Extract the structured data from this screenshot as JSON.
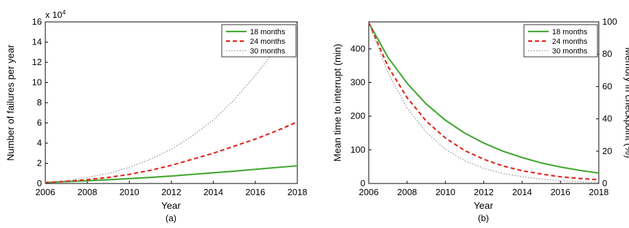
{
  "chart_data": [
    {
      "type": "line",
      "panel_label": "(a)",
      "xlabel": "Year",
      "ylabel": "Number of failures per year",
      "y_multiplier": "x 10",
      "y_multiplier_exp": "4",
      "xlim": [
        2006,
        2018
      ],
      "ylim": [
        0,
        16
      ],
      "xticks": [
        "2006",
        "2008",
        "2010",
        "2012",
        "2014",
        "2016",
        "2018"
      ],
      "yticks": [
        "0",
        "2",
        "4",
        "6",
        "8",
        "10",
        "12",
        "14",
        "16"
      ],
      "legend_position": "top-right",
      "x": [
        2006,
        2007,
        2008,
        2009,
        2010,
        2011,
        2012,
        2013,
        2014,
        2015,
        2016,
        2017,
        2018
      ],
      "series": [
        {
          "name": "18 months",
          "color": "#44a832",
          "style": "solid",
          "values": [
            0.1,
            0.18,
            0.27,
            0.37,
            0.48,
            0.6,
            0.74,
            0.9,
            1.06,
            1.22,
            1.4,
            1.58,
            1.75
          ]
        },
        {
          "name": "24 months",
          "color": "#e0251b",
          "style": "dashed",
          "values": [
            0.1,
            0.22,
            0.38,
            0.6,
            0.9,
            1.3,
            1.8,
            2.4,
            3.0,
            3.7,
            4.4,
            5.2,
            6.1
          ]
        },
        {
          "name": "30 months",
          "color": "#9a9a9a",
          "style": "dotted",
          "values": [
            0.1,
            0.3,
            0.6,
            1.0,
            1.6,
            2.4,
            3.4,
            4.7,
            6.3,
            8.3,
            10.7,
            13.4,
            16.0
          ]
        }
      ]
    },
    {
      "type": "line",
      "panel_label": "(b)",
      "xlabel": "Year",
      "ylabel": "Mean time to interrupt (min)",
      "ylabel_right": "Memory in checkpoint (%)",
      "xlim": [
        2006,
        2018
      ],
      "ylim": [
        0,
        480
      ],
      "ylim_right": [
        0,
        100
      ],
      "xticks": [
        "2006",
        "2008",
        "2010",
        "2012",
        "2014",
        "2016",
        "2018"
      ],
      "yticks": [
        "0",
        "100",
        "200",
        "300",
        "400"
      ],
      "yticks_right": [
        "0",
        "20",
        "40",
        "60",
        "80",
        "100"
      ],
      "legend_position": "top-right",
      "x": [
        2006,
        2007,
        2008,
        2009,
        2010,
        2011,
        2012,
        2013,
        2014,
        2015,
        2016,
        2017,
        2018
      ],
      "series": [
        {
          "name": "18 months",
          "color": "#44a832",
          "style": "solid",
          "values": [
            478,
            375,
            298,
            236,
            188,
            150,
            120,
            96,
            77,
            61,
            49,
            39,
            31
          ]
        },
        {
          "name": "24 months",
          "color": "#e0251b",
          "style": "dashed",
          "values": [
            478,
            348,
            255,
            185,
            135,
            98,
            72,
            52,
            38,
            28,
            20,
            15,
            11
          ]
        },
        {
          "name": "30 months",
          "color": "#9a9a9a",
          "style": "dotted",
          "values": [
            478,
            330,
            225,
            152,
            102,
            68,
            45,
            30,
            20,
            13,
            8,
            5,
            3
          ]
        }
      ]
    }
  ]
}
